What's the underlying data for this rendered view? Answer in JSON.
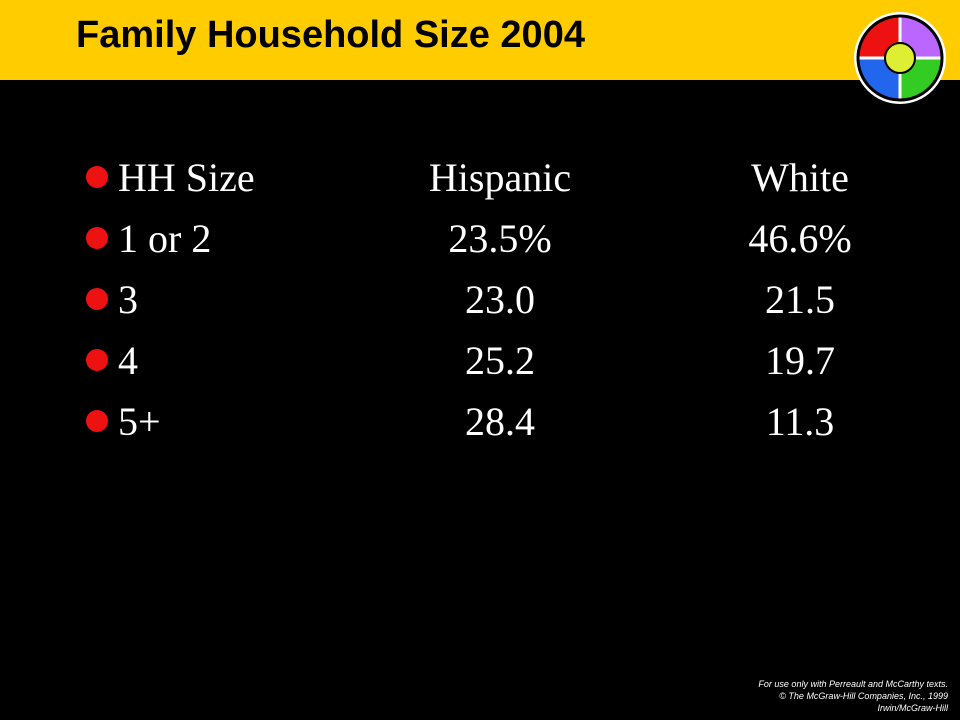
{
  "slide": {
    "title": "Family Household Size 2004",
    "header_color": "#FFCC00",
    "bullet_color": "#EE1111",
    "logo": "color-wheel-icon"
  },
  "table": {
    "headers": [
      "HH Size",
      "Hispanic",
      "White"
    ],
    "rows": [
      [
        "1 or 2",
        "23.5%",
        "46.6%"
      ],
      [
        "3",
        "23.0",
        "21.5"
      ],
      [
        "4",
        "25.2",
        "19.7"
      ],
      [
        "5+",
        "28.4",
        "11.3"
      ]
    ]
  },
  "footer": {
    "line1": "For use only with Perreault and McCarthy texts.",
    "line2": "© The McGraw-Hill Companies, Inc., 1999",
    "line3": "Irwin/McGraw-Hill"
  }
}
